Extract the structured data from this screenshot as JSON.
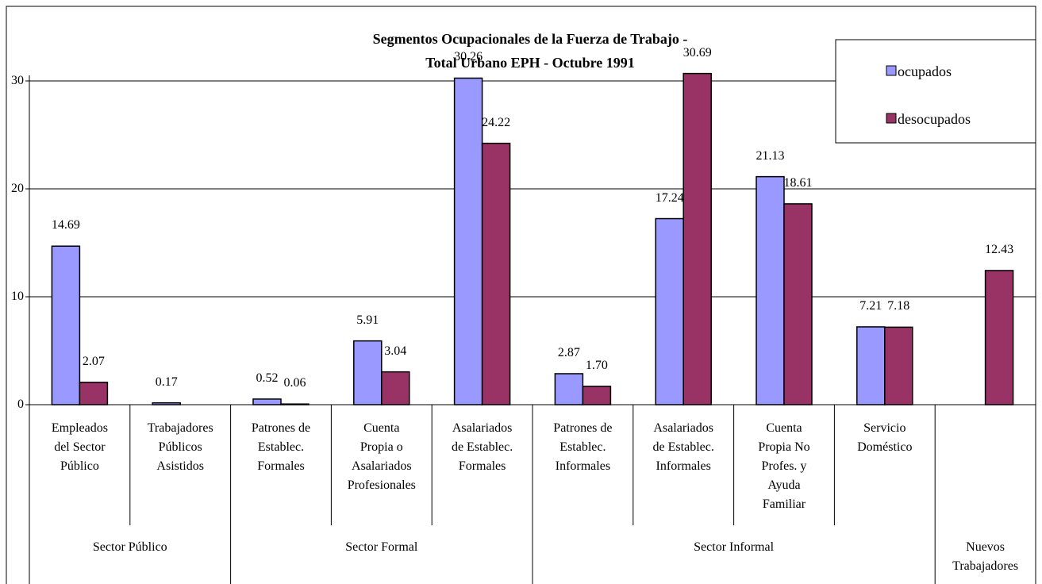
{
  "chart_data": {
    "type": "bar",
    "title": "Segmentos Ocupacionales de la Fuerza de Trabajo -\nTotal Urbano EPH - Octubre 1991",
    "groups": [
      {
        "name": "Sector Público",
        "categories": [
          "Empleados\ndel Sector\nPúblico",
          "Trabajadores\nPúblicos\nAsistidos"
        ]
      },
      {
        "name": "Sector Formal",
        "categories": [
          "Patrones de\nEstablec.\nFormales",
          "Cuenta\nPropia o\nAsalariados\nProfesionales",
          "Asalariados\nde Establec.\nFormales"
        ]
      },
      {
        "name": "Sector Informal",
        "categories": [
          "Patrones de\nEstablec.\nInformales",
          "Asalariados\nde Establec.\nInformales",
          "Cuenta\nPropia No\nProfes. y\nAyuda\nFamiliar",
          "Servicio\nDoméstico"
        ]
      },
      {
        "name": "Nuevos\nTrabajadores",
        "categories": [
          null
        ]
      }
    ],
    "series": [
      {
        "name": "ocupados",
        "color": "#9999ff",
        "values": [
          14.69,
          0.17,
          0.52,
          5.91,
          30.26,
          2.87,
          17.24,
          21.13,
          7.21,
          null
        ],
        "value_labels": [
          "14.69",
          "0.17",
          "0.52",
          "5.91",
          "30.26",
          "2.87",
          "17.24",
          "21.13",
          "7.21",
          null
        ]
      },
      {
        "name": "desocupados",
        "color": "#993366",
        "values": [
          2.07,
          null,
          0.06,
          3.04,
          24.22,
          1.7,
          30.69,
          18.61,
          7.18,
          12.43
        ],
        "value_labels": [
          "2.07",
          null,
          "0.06",
          "3.04",
          "24.22",
          "1.70",
          "30.69",
          "18.61",
          "7.18",
          "12.43"
        ]
      }
    ],
    "ylim": [
      0,
      35
    ],
    "yticks": [
      0,
      10,
      20,
      30
    ],
    "grid": true,
    "legend": "top-right"
  }
}
